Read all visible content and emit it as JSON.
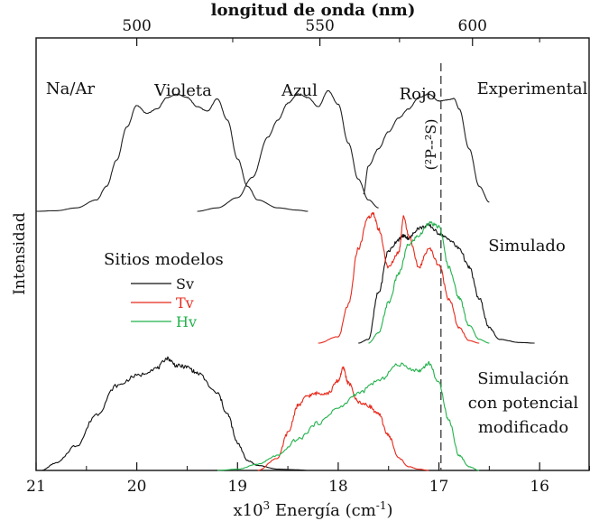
{
  "chart_data": {
    "type": "line",
    "top_axis": {
      "label": "longitud de onda (nm)",
      "ticks": [
        500,
        550,
        600
      ]
    },
    "bottom_axis": {
      "label_main": "x10",
      "label_sup": "3",
      "label_rest": " Energía (cm",
      "label_sup2": "-1",
      "label_end": ")",
      "range": [
        21.0,
        15.5
      ],
      "ticks": [
        21,
        20,
        19,
        18,
        17,
        16
      ]
    },
    "ylabel": "Intensidad",
    "reference_line": {
      "x": 16.98,
      "label": "(²P--²S)",
      "style": "dashed"
    },
    "panel_labels": [
      {
        "text": "Na/Ar",
        "x": 20.65
      },
      {
        "text": "Violeta",
        "x": 19.72
      },
      {
        "text": "Azul",
        "x": 18.26
      },
      {
        "text": "Rojo",
        "x": 17.2
      },
      {
        "text": "Experimental",
        "x": 16.05
      },
      {
        "text": "Simulado",
        "x": 16.2
      },
      {
        "text": "Simulación",
        "x": 16.2
      },
      {
        "text": "con potencial",
        "x": 16.2
      },
      {
        "text": "modificado",
        "x": 16.2
      }
    ],
    "legend": {
      "title": "Sitios modelos",
      "entries": [
        {
          "name": "Sv",
          "color": "#111111"
        },
        {
          "name": "Tv",
          "color": "#e8291b"
        },
        {
          "name": "Hv",
          "color": "#22b24c"
        }
      ]
    },
    "series": [
      {
        "name": "Violeta",
        "group": "experimental",
        "color": "#222222",
        "x": [
          21.0,
          20.8,
          20.6,
          20.4,
          20.3,
          20.2,
          20.1,
          20.0,
          19.9,
          19.8,
          19.7,
          19.6,
          19.5,
          19.4,
          19.3,
          19.2,
          19.1,
          19.0,
          18.9,
          18.8,
          18.6,
          18.4,
          18.3
        ],
        "y": [
          0.0,
          0.005,
          0.03,
          0.1,
          0.22,
          0.45,
          0.74,
          0.93,
          0.86,
          0.9,
          1.0,
          1.03,
          1.0,
          0.92,
          0.88,
          0.99,
          0.8,
          0.46,
          0.22,
          0.1,
          0.03,
          0.01,
          0.0
        ]
      },
      {
        "name": "Azul",
        "group": "experimental",
        "color": "#222222",
        "x": [
          19.4,
          19.2,
          19.0,
          18.85,
          18.7,
          18.6,
          18.5,
          18.4,
          18.3,
          18.2,
          18.1,
          18.0,
          17.9,
          17.8,
          17.7,
          17.6
        ],
        "y": [
          0.0,
          0.03,
          0.12,
          0.3,
          0.65,
          0.8,
          0.95,
          1.03,
          1.0,
          0.92,
          1.06,
          0.94,
          0.6,
          0.28,
          0.1,
          0.03
        ]
      },
      {
        "name": "Rojo",
        "group": "experimental",
        "color": "#222222",
        "x": [
          17.75,
          17.7,
          17.6,
          17.5,
          17.4,
          17.3,
          17.2,
          17.1,
          17.0,
          16.9,
          16.85,
          16.8,
          16.7,
          16.6,
          16.5
        ],
        "y": [
          0.15,
          0.4,
          0.55,
          0.7,
          0.82,
          0.9,
          1.0,
          1.03,
          0.97,
          0.98,
          0.99,
          0.9,
          0.55,
          0.22,
          0.08
        ]
      },
      {
        "name": "Sv",
        "group": "simulado",
        "color": "#111111",
        "x": [
          17.8,
          17.7,
          17.6,
          17.5,
          17.4,
          17.35,
          17.3,
          17.2,
          17.1,
          17.0,
          16.9,
          16.8,
          16.7,
          16.6,
          16.5,
          16.4,
          16.2,
          16.05
        ],
        "y": [
          0.0,
          0.03,
          0.4,
          0.73,
          0.82,
          0.85,
          0.83,
          0.91,
          0.93,
          0.87,
          0.82,
          0.75,
          0.6,
          0.35,
          0.12,
          0.03,
          0.005,
          0.0
        ]
      },
      {
        "name": "Tv",
        "group": "simulado",
        "color": "#e8291b",
        "x": [
          18.2,
          18.0,
          17.9,
          17.8,
          17.7,
          17.65,
          17.6,
          17.5,
          17.4,
          17.35,
          17.3,
          17.2,
          17.1,
          17.0,
          16.9,
          16.8,
          16.7,
          16.6
        ],
        "y": [
          0.0,
          0.05,
          0.3,
          0.75,
          1.0,
          1.02,
          0.9,
          0.6,
          0.72,
          1.0,
          0.85,
          0.6,
          0.75,
          0.62,
          0.35,
          0.12,
          0.02,
          0.0
        ]
      },
      {
        "name": "Hv",
        "group": "simulado",
        "color": "#22b24c",
        "x": [
          17.7,
          17.6,
          17.5,
          17.4,
          17.3,
          17.2,
          17.1,
          17.0,
          16.9,
          16.8,
          16.7,
          16.6,
          16.5
        ],
        "y": [
          0.0,
          0.08,
          0.32,
          0.55,
          0.78,
          0.85,
          0.95,
          0.92,
          0.6,
          0.36,
          0.14,
          0.03,
          0.0
        ]
      },
      {
        "name": "Sv",
        "group": "modificado",
        "color": "#111111",
        "x": [
          20.95,
          20.8,
          20.6,
          20.4,
          20.2,
          20.0,
          19.8,
          19.7,
          19.6,
          19.5,
          19.4,
          19.2,
          19.1,
          19.0,
          18.9,
          18.8,
          18.6,
          18.4,
          18.3
        ],
        "y": [
          0.0,
          0.06,
          0.2,
          0.45,
          0.68,
          0.76,
          0.82,
          0.9,
          0.84,
          0.83,
          0.78,
          0.62,
          0.45,
          0.22,
          0.08,
          0.04,
          0.01,
          0.005,
          0.0
        ]
      },
      {
        "name": "Tv",
        "group": "modificado",
        "color": "#e8291b",
        "x": [
          18.8,
          18.6,
          18.5,
          18.4,
          18.3,
          18.2,
          18.1,
          18.0,
          17.95,
          17.9,
          17.8,
          17.7,
          17.6,
          17.5,
          17.4,
          17.3,
          17.2,
          17.1
        ],
        "y": [
          0.0,
          0.1,
          0.3,
          0.52,
          0.6,
          0.62,
          0.62,
          0.72,
          0.82,
          0.7,
          0.55,
          0.52,
          0.45,
          0.28,
          0.1,
          0.03,
          0.01,
          0.0
        ]
      },
      {
        "name": "Hv",
        "group": "modificado",
        "color": "#22b24c",
        "x": [
          19.2,
          19.0,
          18.8,
          18.6,
          18.4,
          18.2,
          18.0,
          17.8,
          17.6,
          17.4,
          17.2,
          17.1,
          17.0,
          16.9,
          16.8,
          16.7,
          16.6
        ],
        "y": [
          0.0,
          0.01,
          0.05,
          0.12,
          0.25,
          0.38,
          0.5,
          0.62,
          0.72,
          0.85,
          0.8,
          0.86,
          0.7,
          0.4,
          0.12,
          0.03,
          0.0
        ]
      }
    ]
  }
}
